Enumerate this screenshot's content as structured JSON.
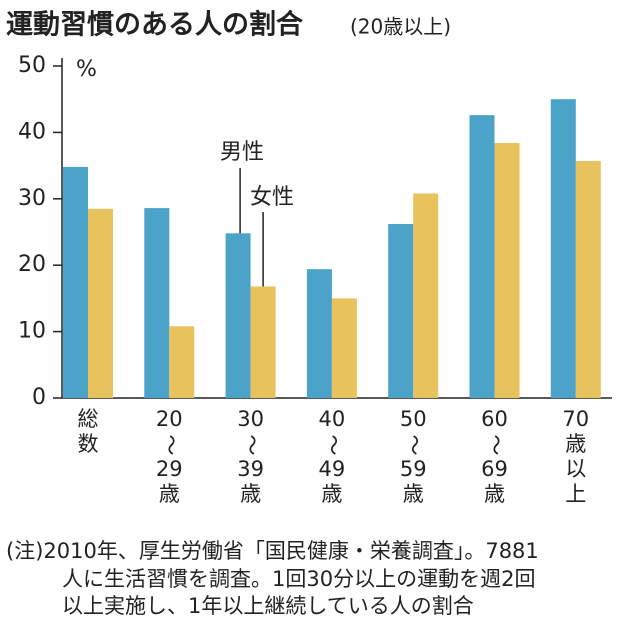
{
  "chart_data": {
    "type": "bar",
    "title": "運動習慣のある人の割合",
    "subtitle": "(20歳以上)",
    "y_unit": "%",
    "categories": [
      [
        "総",
        "数"
      ],
      [
        "20",
        "〜",
        "29",
        "歳"
      ],
      [
        "30",
        "〜",
        "39",
        "歳"
      ],
      [
        "40",
        "〜",
        "49",
        "歳"
      ],
      [
        "50",
        "〜",
        "59",
        "歳"
      ],
      [
        "60",
        "〜",
        "69",
        "歳"
      ],
      [
        "70",
        "歳",
        "以",
        "上"
      ]
    ],
    "series": [
      {
        "name": "男性",
        "color": "#4ba3c9",
        "values": [
          34.8,
          28.6,
          24.8,
          19.4,
          26.2,
          42.6,
          45.0
        ]
      },
      {
        "name": "女性",
        "color": "#e8c25c",
        "values": [
          28.5,
          10.8,
          16.8,
          15.0,
          30.8,
          38.4,
          35.7
        ]
      }
    ],
    "ylim": [
      0,
      50
    ],
    "yticks": [
      0,
      10,
      20,
      30,
      40,
      50
    ],
    "note": [
      "(注)2010年、厚生労働省「国民健康・栄養調査」。7881",
      "人に生活習慣を調査。1回30分以上の運動を週2回",
      "以上実施し、1年以上継続している人の割合"
    ]
  }
}
